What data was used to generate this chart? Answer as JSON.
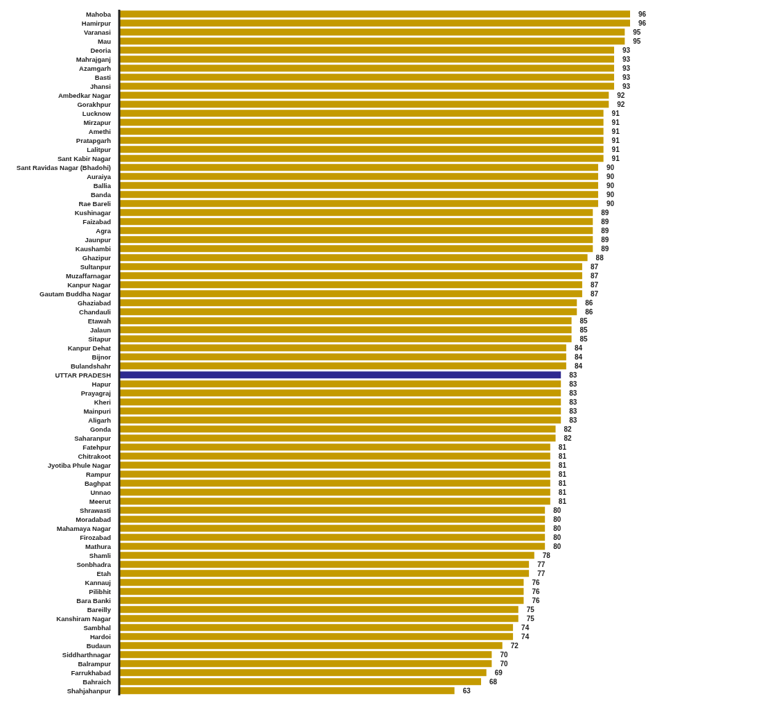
{
  "chart_data": {
    "type": "bar",
    "orientation": "horizontal",
    "data_labels": true,
    "grid": false,
    "legend": false,
    "categories": [
      "Mahoba",
      "Hamirpur",
      "Varanasi",
      "Mau",
      "Deoria",
      "Mahrajganj",
      "Azamgarh",
      "Basti",
      "Jhansi",
      "Ambedkar Nagar",
      "Gorakhpur",
      "Lucknow",
      "Mirzapur",
      "Amethi",
      "Pratapgarh",
      "Lalitpur",
      "Sant Kabir Nagar",
      "Sant Ravidas Nagar (Bhadohi)",
      "Auraiya",
      "Ballia",
      "Banda",
      "Rae Bareli",
      "Kushinagar",
      "Faizabad",
      "Agra",
      "Jaunpur",
      "Kaushambi",
      "Ghazipur",
      "Sultanpur",
      "Muzaffarnagar",
      "Kanpur Nagar",
      "Gautam Buddha Nagar",
      "Ghaziabad",
      "Chandauli",
      "Etawah",
      "Jalaun",
      "Sitapur",
      "Kanpur Dehat",
      "Bijnor",
      "Bulandshahr",
      "UTTAR PRADESH",
      "Hapur",
      "Prayagraj",
      "Kheri",
      "Mainpuri",
      "Aligarh",
      "Gonda",
      "Saharanpur",
      "Fatehpur",
      "Chitrakoot",
      "Jyotiba Phule Nagar",
      "Rampur",
      "Baghpat",
      "Unnao",
      "Meerut",
      "Shrawasti",
      "Moradabad",
      "Mahamaya Nagar",
      "Firozabad",
      "Mathura",
      "Shamli",
      "Sonbhadra",
      "Etah",
      "Kannauj",
      "Pilibhit",
      "Bara Banki",
      "Bareilly",
      "Kanshiram Nagar",
      "Sambhal",
      "Hardoi",
      "Budaun",
      "Siddharthnagar",
      "Balrampur",
      "Farrukhabad",
      "Bahraich",
      "Shahjahanpur"
    ],
    "values": [
      96,
      96,
      95,
      95,
      93,
      93,
      93,
      93,
      93,
      92,
      92,
      91,
      91,
      91,
      91,
      91,
      91,
      90,
      90,
      90,
      90,
      90,
      89,
      89,
      89,
      89,
      89,
      88,
      87,
      87,
      87,
      87,
      86,
      86,
      85,
      85,
      85,
      84,
      84,
      84,
      83,
      83,
      83,
      83,
      83,
      83,
      82,
      82,
      81,
      81,
      81,
      81,
      81,
      81,
      81,
      80,
      80,
      80,
      80,
      80,
      78,
      77,
      77,
      76,
      76,
      76,
      75,
      75,
      74,
      74,
      72,
      70,
      70,
      69,
      68,
      63
    ],
    "colors": [
      "#c49a00",
      "#c49a00",
      "#c49a00",
      "#c49a00",
      "#c49a00",
      "#c49a00",
      "#c49a00",
      "#c49a00",
      "#c49a00",
      "#c49a00",
      "#c49a00",
      "#c49a00",
      "#c49a00",
      "#c49a00",
      "#c49a00",
      "#c49a00",
      "#c49a00",
      "#c49a00",
      "#c49a00",
      "#c49a00",
      "#c49a00",
      "#c49a00",
      "#c49a00",
      "#c49a00",
      "#c49a00",
      "#c49a00",
      "#c49a00",
      "#c49a00",
      "#c49a00",
      "#c49a00",
      "#c49a00",
      "#c49a00",
      "#c49a00",
      "#c49a00",
      "#c49a00",
      "#c49a00",
      "#c49a00",
      "#c49a00",
      "#c49a00",
      "#c49a00",
      "#2e2a8f",
      "#c49a00",
      "#c49a00",
      "#c49a00",
      "#c49a00",
      "#c49a00",
      "#c49a00",
      "#c49a00",
      "#c49a00",
      "#c49a00",
      "#c49a00",
      "#c49a00",
      "#c49a00",
      "#c49a00",
      "#c49a00",
      "#c49a00",
      "#c49a00",
      "#c49a00",
      "#c49a00",
      "#c49a00",
      "#c49a00",
      "#c49a00",
      "#c49a00",
      "#c49a00",
      "#c49a00",
      "#c49a00",
      "#c49a00",
      "#c49a00",
      "#c49a00",
      "#c49a00",
      "#c49a00",
      "#c49a00",
      "#c49a00",
      "#c49a00",
      "#c49a00",
      "#c49a00"
    ]
  }
}
